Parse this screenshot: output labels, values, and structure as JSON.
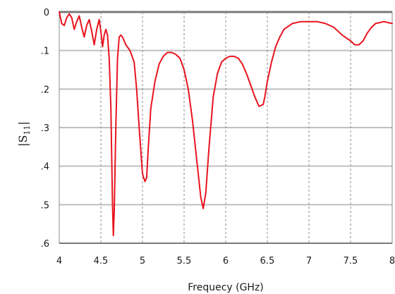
{
  "chart_data": {
    "type": "line",
    "xlabel": "Frequecy (GHz)",
    "ylabel_main": "|S",
    "ylabel_sub": "11",
    "ylabel_end": "|",
    "xlim": [
      4,
      8
    ],
    "ylim": [
      0,
      0.6
    ],
    "y_inverted": true,
    "x_ticks": [
      4,
      4.5,
      5,
      5.5,
      6,
      6.5,
      7,
      7.5,
      8
    ],
    "x_tick_labels": [
      "4",
      "4.5",
      "5",
      "5.5",
      "6",
      "6.5",
      "7",
      "7.5",
      "8"
    ],
    "y_ticks": [
      0,
      0.1,
      0.2,
      0.3,
      0.4,
      0.5,
      0.6
    ],
    "y_tick_labels": [
      "0",
      ".1",
      ".2",
      ".3",
      ".4",
      ".5",
      ".6"
    ],
    "grid": {
      "horizontal": "solid",
      "vertical": "dashed"
    },
    "series": [
      {
        "color": "#e8141e",
        "x": [
          4.0,
          4.03,
          4.06,
          4.09,
          4.12,
          4.15,
          4.18,
          4.21,
          4.24,
          4.27,
          4.3,
          4.33,
          4.36,
          4.39,
          4.42,
          4.45,
          4.48,
          4.5,
          4.52,
          4.54,
          4.56,
          4.58,
          4.6,
          4.62,
          4.64,
          4.65,
          4.66,
          4.68,
          4.7,
          4.72,
          4.74,
          4.76,
          4.8,
          4.85,
          4.9,
          4.93,
          4.96,
          5.0,
          5.03,
          5.05,
          5.07,
          5.1,
          5.15,
          5.2,
          5.25,
          5.3,
          5.35,
          5.4,
          5.45,
          5.5,
          5.55,
          5.6,
          5.65,
          5.7,
          5.73,
          5.76,
          5.8,
          5.85,
          5.9,
          5.95,
          6.0,
          6.05,
          6.1,
          6.15,
          6.2,
          6.25,
          6.3,
          6.35,
          6.4,
          6.45,
          6.47,
          6.5,
          6.55,
          6.6,
          6.65,
          6.7,
          6.8,
          6.9,
          7.0,
          7.1,
          7.2,
          7.3,
          7.4,
          7.5,
          7.55,
          7.6,
          7.65,
          7.7,
          7.75,
          7.8,
          7.9,
          8.0
        ],
        "y": [
          0.0,
          0.03,
          0.035,
          0.015,
          0.005,
          0.015,
          0.045,
          0.025,
          0.01,
          0.04,
          0.065,
          0.035,
          0.02,
          0.05,
          0.085,
          0.045,
          0.02,
          0.05,
          0.09,
          0.06,
          0.045,
          0.06,
          0.12,
          0.25,
          0.5,
          0.58,
          0.52,
          0.3,
          0.12,
          0.065,
          0.06,
          0.065,
          0.085,
          0.1,
          0.13,
          0.2,
          0.3,
          0.42,
          0.44,
          0.43,
          0.35,
          0.25,
          0.18,
          0.135,
          0.115,
          0.105,
          0.105,
          0.11,
          0.12,
          0.15,
          0.2,
          0.28,
          0.38,
          0.48,
          0.51,
          0.47,
          0.35,
          0.22,
          0.16,
          0.13,
          0.12,
          0.115,
          0.115,
          0.12,
          0.135,
          0.16,
          0.19,
          0.22,
          0.245,
          0.24,
          0.22,
          0.18,
          0.13,
          0.09,
          0.065,
          0.045,
          0.03,
          0.025,
          0.025,
          0.025,
          0.03,
          0.04,
          0.06,
          0.075,
          0.085,
          0.085,
          0.075,
          0.055,
          0.04,
          0.03,
          0.025,
          0.03
        ]
      }
    ]
  }
}
